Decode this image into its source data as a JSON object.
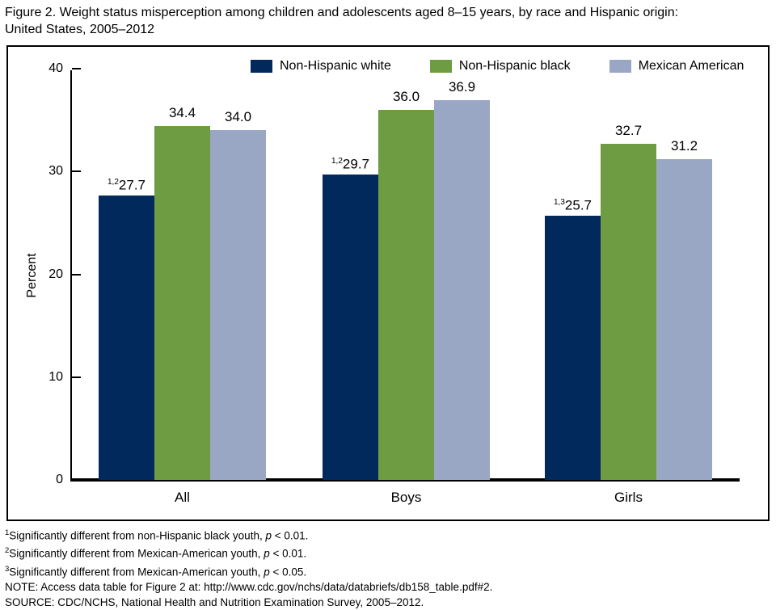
{
  "title": "Figure 2. Weight status misperception among children and adolescents aged 8–15 years, by race and Hispanic origin:\nUnited States, 2005–2012",
  "chart_data": {
    "type": "bar",
    "title": "Figure 2. Weight status misperception among children and adolescents aged 8–15 years, by race and Hispanic origin: United States, 2005–2012",
    "categories": [
      "All",
      "Boys",
      "Girls"
    ],
    "series": [
      {
        "name": "Non-Hispanic white",
        "color": "#01295c",
        "values": [
          27.7,
          29.7,
          25.7
        ],
        "sup_labels": [
          "1,2",
          "1,2",
          "1,3"
        ]
      },
      {
        "name": "Non-Hispanic black",
        "color": "#6d9c42",
        "values": [
          34.4,
          36.0,
          32.7
        ],
        "sup_labels": [
          "",
          "",
          ""
        ]
      },
      {
        "name": "Mexican American",
        "color": "#99a6c4",
        "values": [
          34.0,
          36.9,
          31.2
        ],
        "sup_labels": [
          "",
          "",
          ""
        ]
      }
    ],
    "ylabel": "Percent",
    "xlabel": "",
    "ylim": [
      0,
      40
    ],
    "yticks": [
      0,
      10,
      20,
      30,
      40
    ],
    "grid": false,
    "legend_position": "top"
  },
  "footnotes": [
    {
      "marker": "1",
      "before_p": "Significantly different from non-Hispanic black youth, ",
      "p": "p",
      "after_p": " < 0.01."
    },
    {
      "marker": "2",
      "before_p": "Significantly different from Mexican-American youth, ",
      "p": "p",
      "after_p": " < 0.01."
    },
    {
      "marker": "3",
      "before_p": "Significantly different from Mexican-American youth, ",
      "p": "p",
      "after_p": " < 0.05."
    }
  ],
  "note": "NOTE: Access data table for Figure 2 at: http://www.cdc.gov/nchs/data/databriefs/db158_table.pdf#2.",
  "source": "SOURCE: CDC/NCHS, National Health and Nutrition Examination Survey, 2005–2012."
}
